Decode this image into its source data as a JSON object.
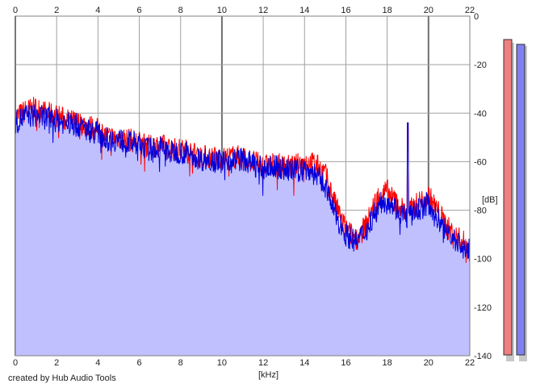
{
  "footer": {
    "credit": "created by Hub Audio Tools"
  },
  "chart_data": {
    "type": "area",
    "xlabel": "[kHz]",
    "ylabel": "[dB]",
    "xlim": [
      0,
      22
    ],
    "ylim": [
      -140,
      0
    ],
    "xticks": [
      "0",
      "2",
      "4",
      "6",
      "8",
      "10",
      "12",
      "14",
      "16",
      "18",
      "20",
      "22"
    ],
    "yticks": [
      "0",
      "-20",
      "-40",
      "-60",
      "-80",
      "-100",
      "-120",
      "-140"
    ],
    "grid": true,
    "fill_color": "#c0c0ff",
    "series": [
      {
        "color": "#ff0000",
        "x": [
          0,
          0.5,
          1,
          1.5,
          2,
          2.5,
          3,
          3.5,
          4,
          4.5,
          5,
          5.5,
          6,
          6.5,
          7,
          7.5,
          8,
          8.5,
          9,
          9.5,
          10,
          10.5,
          11,
          11.5,
          12,
          12.5,
          13,
          13.5,
          14,
          14.5,
          15,
          15.5,
          16,
          16.5,
          17,
          17.5,
          18,
          18.5,
          19,
          19.5,
          20,
          20.5,
          21,
          21.5,
          22
        ],
        "values": [
          -42,
          -39,
          -38,
          -40,
          -41,
          -43,
          -44,
          -45,
          -47,
          -50,
          -50,
          -51,
          -52,
          -54,
          -53,
          -55,
          -55,
          -56,
          -58,
          -58,
          -59,
          -58,
          -58,
          -60,
          -62,
          -61,
          -62,
          -62,
          -60,
          -61,
          -65,
          -78,
          -88,
          -92,
          -86,
          -75,
          -72,
          -78,
          -81,
          -77,
          -74,
          -81,
          -88,
          -92,
          -95
        ]
      },
      {
        "color": "#0000dd",
        "x": [
          0,
          0.5,
          1,
          1.5,
          2,
          2.5,
          3,
          3.5,
          4,
          4.5,
          5,
          5.5,
          6,
          6.5,
          7,
          7.5,
          8,
          8.5,
          9,
          9.5,
          10,
          10.5,
          11,
          11.5,
          12,
          12.5,
          13,
          13.5,
          14,
          14.5,
          15,
          15.5,
          16,
          16.5,
          17,
          17.5,
          18,
          18.5,
          19,
          19.5,
          20,
          20.5,
          21,
          21.5,
          22
        ],
        "values": [
          -44,
          -41,
          -41,
          -42,
          -43,
          -44,
          -45,
          -47,
          -48,
          -51,
          -51,
          -52,
          -53,
          -55,
          -54,
          -56,
          -56,
          -57,
          -59,
          -59,
          -60,
          -59,
          -59,
          -61,
          -63,
          -62,
          -63,
          -64,
          -63,
          -65,
          -70,
          -82,
          -90,
          -93,
          -88,
          -79,
          -75,
          -80,
          -83,
          -80,
          -77,
          -84,
          -90,
          -94,
          -97
        ]
      }
    ],
    "spikes": [
      {
        "x": 19.0,
        "value": -44
      }
    ]
  },
  "meters": [
    {
      "color": "#f08080"
    },
    {
      "color": "#8080f0"
    }
  ]
}
